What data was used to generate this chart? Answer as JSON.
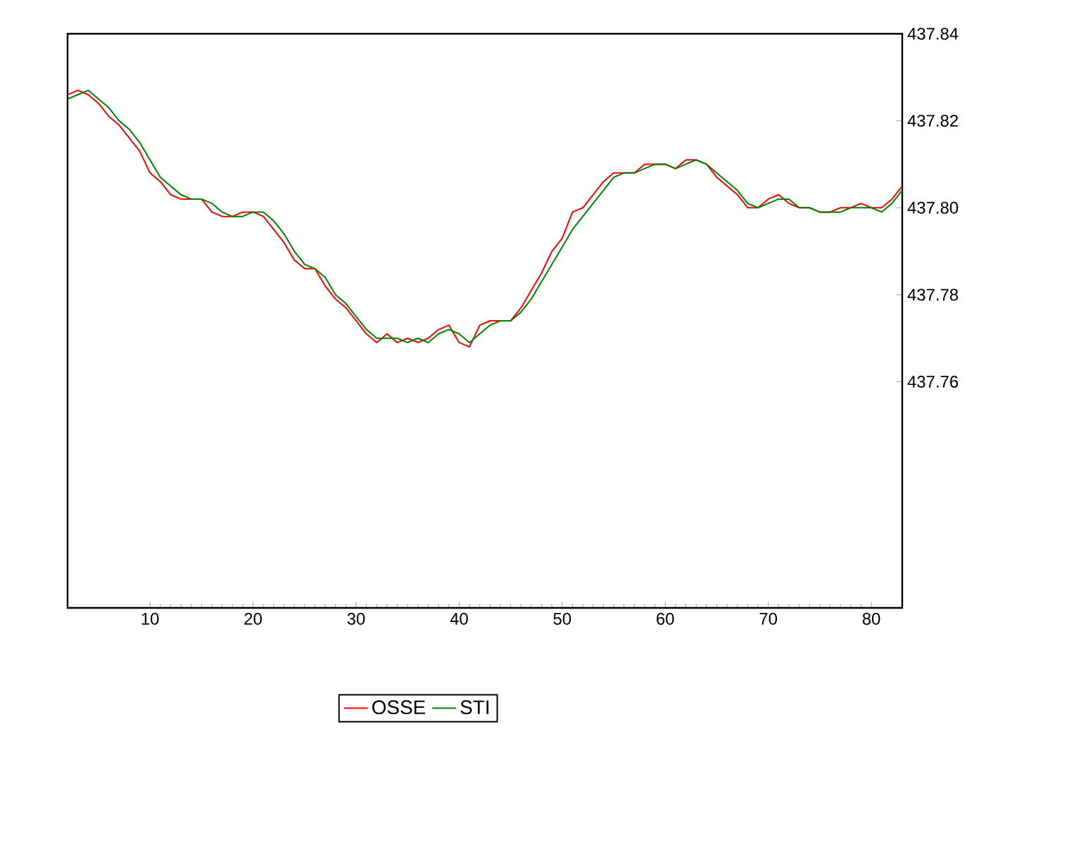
{
  "chart_data": {
    "type": "line",
    "x": [
      2,
      3,
      4,
      5,
      6,
      7,
      8,
      9,
      10,
      11,
      12,
      13,
      14,
      15,
      16,
      17,
      18,
      19,
      20,
      21,
      22,
      23,
      24,
      25,
      26,
      27,
      28,
      29,
      30,
      31,
      32,
      33,
      34,
      35,
      36,
      37,
      38,
      39,
      40,
      41,
      42,
      43,
      44,
      45,
      46,
      47,
      48,
      49,
      50,
      51,
      52,
      53,
      54,
      55,
      56,
      57,
      58,
      59,
      60,
      61,
      62,
      63,
      64,
      65,
      66,
      67,
      68,
      69,
      70,
      71,
      72,
      73,
      74,
      75,
      76,
      77,
      78,
      79,
      80,
      81,
      82,
      83
    ],
    "series": [
      {
        "name": "OSSE",
        "color": "#ff0000",
        "values": [
          437.826,
          437.827,
          437.826,
          437.824,
          437.821,
          437.819,
          437.816,
          437.813,
          437.808,
          437.806,
          437.803,
          437.802,
          437.802,
          437.802,
          437.799,
          437.798,
          437.798,
          437.799,
          437.799,
          437.798,
          437.795,
          437.792,
          437.788,
          437.786,
          437.786,
          437.782,
          437.779,
          437.777,
          437.774,
          437.771,
          437.769,
          437.771,
          437.769,
          437.77,
          437.769,
          437.77,
          437.772,
          437.773,
          437.769,
          437.768,
          437.773,
          437.774,
          437.774,
          437.774,
          437.777,
          437.781,
          437.785,
          437.79,
          437.793,
          437.799,
          437.8,
          437.803,
          437.806,
          437.808,
          437.808,
          437.808,
          437.81,
          437.81,
          437.81,
          437.809,
          437.811,
          437.811,
          437.81,
          437.807,
          437.805,
          437.803,
          437.8,
          437.8,
          437.802,
          437.803,
          437.801,
          437.8,
          437.8,
          437.799,
          437.799,
          437.8,
          437.8,
          437.801,
          437.8,
          437.8,
          437.802,
          437.805
        ]
      },
      {
        "name": "STI",
        "color": "#008000",
        "values": [
          437.825,
          437.826,
          437.827,
          437.825,
          437.823,
          437.82,
          437.818,
          437.815,
          437.811,
          437.807,
          437.805,
          437.803,
          437.802,
          437.802,
          437.801,
          437.799,
          437.798,
          437.798,
          437.799,
          437.799,
          437.797,
          437.794,
          437.79,
          437.787,
          437.786,
          437.784,
          437.78,
          437.778,
          437.775,
          437.772,
          437.77,
          437.77,
          437.77,
          437.769,
          437.77,
          437.769,
          437.771,
          437.772,
          437.771,
          437.769,
          437.771,
          437.773,
          437.774,
          437.774,
          437.776,
          437.779,
          437.783,
          437.787,
          437.791,
          437.795,
          437.798,
          437.801,
          437.804,
          437.807,
          437.808,
          437.808,
          437.809,
          437.81,
          437.81,
          437.809,
          437.81,
          437.811,
          437.81,
          437.808,
          437.806,
          437.804,
          437.801,
          437.8,
          437.801,
          437.802,
          437.802,
          437.8,
          437.8,
          437.799,
          437.799,
          437.799,
          437.8,
          437.8,
          437.8,
          437.799,
          437.801,
          437.804
        ]
      }
    ],
    "xlim": [
      2,
      83
    ],
    "ylim": [
      437.708,
      437.84
    ],
    "xticks": [
      10,
      20,
      30,
      40,
      50,
      60,
      70,
      80
    ],
    "yticks": [
      437.76,
      437.78,
      {
        "value": 437.8,
        "label": "437.80"
      },
      437.82,
      437.84
    ],
    "legend": "bottom"
  }
}
